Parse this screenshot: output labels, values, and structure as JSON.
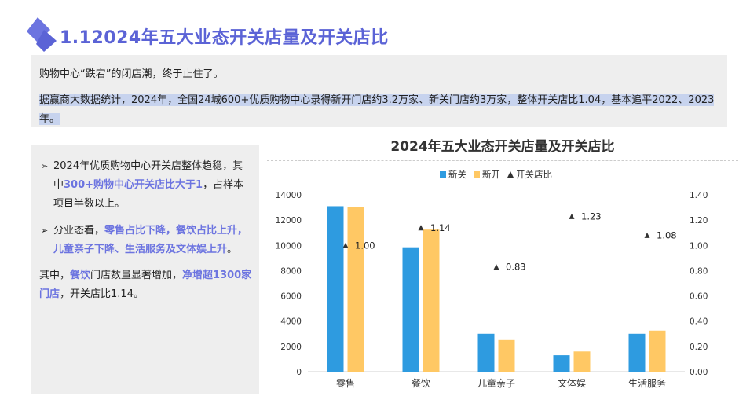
{
  "page": {
    "title": "1.12024年五大业态开关店量及开关店比"
  },
  "intro": {
    "line1": "购物中心“跌宕”的闭店潮，终于止住了。",
    "line2": "据赢商大数据统计，2024年，全国24城600+优质购物中心录得新开门店约3.2万家、新关门店约3万家，整体开关店比1.04，基本追平2022、2023年。"
  },
  "left_panel": {
    "bullet1_a": "2024年优质购物中心开关店整体趋稳，其中",
    "bullet1_hl": "300+购物中心开关店比大于1",
    "bullet1_b": "，占样本项目半数以上。",
    "bullet2_a": "分业态看，",
    "bullet2_hl": "零售占比下降，餐饮占比上升，儿童亲子下降、生活服务及文体娱上升",
    "bullet2_b": "。",
    "para_a": "其中，",
    "para_hl1": "餐饮",
    "para_b": "门店数量显著增加，",
    "para_hl2": "净增超1300家门店",
    "para_c": "，开关店比1.14。",
    "bullet_marker": "➢"
  },
  "chart_data": {
    "type": "bar",
    "title": "2024年五大业态开关店量及开关店比",
    "categories": [
      "零售",
      "餐饮",
      "儿童亲子",
      "文体娱",
      "生活服务"
    ],
    "series": [
      {
        "name": "新关",
        "type": "bar",
        "color": "#2e9be0",
        "values": [
          13100,
          9850,
          3000,
          1300,
          3000
        ]
      },
      {
        "name": "新开",
        "type": "bar",
        "color": "#ffc864",
        "values": [
          13050,
          11250,
          2500,
          1600,
          3250
        ]
      },
      {
        "name": "开关店比",
        "type": "marker",
        "axis": "right",
        "color": "#333333",
        "values": [
          1.0,
          1.14,
          0.83,
          1.23,
          1.08
        ]
      }
    ],
    "ratio_labels": [
      "1.00",
      "1.14",
      "0.83",
      "1.23",
      "1.08"
    ],
    "y_left": {
      "min": 0,
      "max": 14000,
      "ticks": [
        "0",
        "2000",
        "4000",
        "6000",
        "8000",
        "10000",
        "12000",
        "14000"
      ]
    },
    "y_right": {
      "min": 0,
      "max": 1.4,
      "ticks": [
        "0.00",
        "0.20",
        "0.40",
        "0.60",
        "0.80",
        "1.00",
        "1.20",
        "1.40"
      ]
    },
    "legend_position": "top",
    "grid": false
  }
}
